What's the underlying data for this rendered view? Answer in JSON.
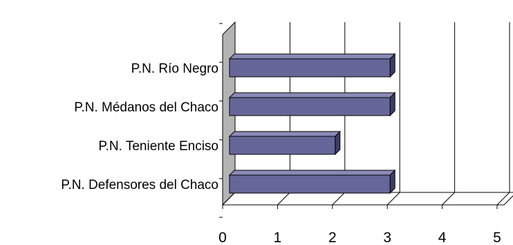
{
  "chart_data": {
    "type": "bar",
    "orientation": "horizontal",
    "style": "3d",
    "categories": [
      "P.N. Defensores del Chaco",
      "P.N. Teniente Enciso",
      "P.N. Médanos del Chaco",
      "P.N. Río Negro"
    ],
    "values": [
      3,
      2,
      3,
      3
    ],
    "xlim": [
      0,
      5
    ],
    "xticks": [
      "0",
      "1",
      "2",
      "3",
      "4",
      "5"
    ],
    "grid": true,
    "legend": "none",
    "colors": {
      "bar_front": "#666699",
      "bar_top": "#8a8ab8",
      "bar_side": "#3d3d66",
      "wall": "#b3b3b3",
      "grid": "#000000"
    }
  }
}
